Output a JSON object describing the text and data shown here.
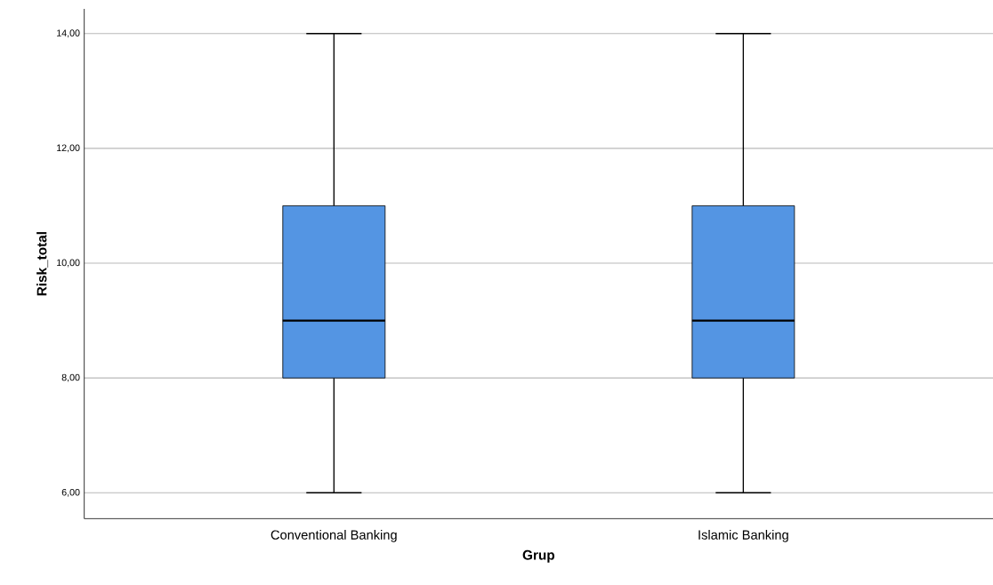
{
  "chart_data": {
    "type": "box",
    "xlabel": "Grup",
    "ylabel": "Risk_total",
    "categories": [
      "Conventional Banking",
      "Islamic Banking"
    ],
    "series": [
      {
        "color": "#5495e3",
        "boxes": [
          {
            "low": 6,
            "q1": 8,
            "median": 9,
            "q3": 11,
            "high": 14
          },
          {
            "low": 6,
            "q1": 8,
            "median": 9,
            "q3": 11,
            "high": 14
          }
        ]
      }
    ],
    "ylim": [
      5.55,
      14.43
    ],
    "yticks": [
      {
        "value": 6,
        "label": "6,00"
      },
      {
        "value": 8,
        "label": "8,00"
      },
      {
        "value": 10,
        "label": "10,00"
      },
      {
        "value": 12,
        "label": "12,00"
      },
      {
        "value": 14,
        "label": "14,00"
      }
    ],
    "grid": "y",
    "legend": false
  }
}
